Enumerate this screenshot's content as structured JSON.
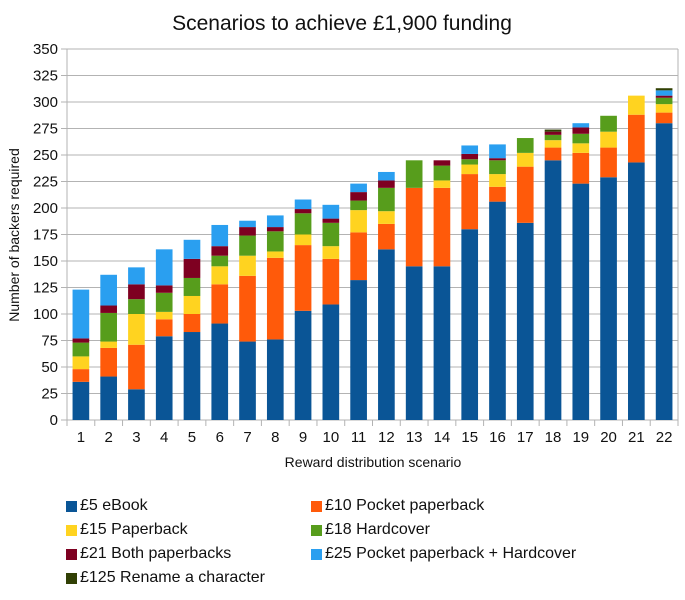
{
  "chart_data": {
    "type": "bar",
    "stacked": true,
    "title": "Scenarios to achieve £1,900 funding",
    "xlabel": "Reward distribution scenario",
    "ylabel": "Number of backers required",
    "ylim": [
      0,
      350
    ],
    "yticks": [
      0,
      25,
      50,
      75,
      100,
      125,
      150,
      175,
      200,
      225,
      250,
      275,
      300,
      325,
      350
    ],
    "grid": true,
    "legend_position": "bottom",
    "categories": [
      "1",
      "2",
      "3",
      "4",
      "5",
      "6",
      "7",
      "8",
      "9",
      "10",
      "11",
      "12",
      "13",
      "14",
      "15",
      "16",
      "17",
      "18",
      "19",
      "20",
      "21",
      "22"
    ],
    "series": [
      {
        "name": "£5 eBook",
        "color": "#0a5596",
        "values": [
          36,
          41,
          29,
          79,
          83,
          91,
          74,
          76,
          103,
          109,
          132,
          161,
          145,
          145,
          180,
          206,
          186,
          245,
          223,
          229,
          243,
          280
        ]
      },
      {
        "name": "£10 Pocket paperback",
        "color": "#ff5a0a",
        "values": [
          12,
          27,
          42,
          16,
          17,
          37,
          62,
          77,
          62,
          43,
          45,
          24,
          74,
          74,
          52,
          14,
          53,
          12,
          29,
          28,
          45,
          10
        ]
      },
      {
        "name": "£15 Paperback",
        "color": "#ffd320",
        "values": [
          12,
          6,
          29,
          7,
          17,
          17,
          19,
          6,
          10,
          12,
          21,
          12,
          0,
          7,
          9,
          12,
          13,
          7,
          9,
          15,
          18,
          8
        ]
      },
      {
        "name": "£18 Hardcover",
        "color": "#579d1c",
        "values": [
          13,
          27,
          14,
          18,
          17,
          10,
          19,
          19,
          20,
          22,
          9,
          22,
          26,
          14,
          5,
          13,
          14,
          5,
          9,
          15,
          0,
          6
        ]
      },
      {
        "name": "£21 Both paperbacks",
        "color": "#7e0021",
        "values": [
          4,
          7,
          14,
          7,
          18,
          9,
          8,
          4,
          4,
          4,
          8,
          7,
          0,
          5,
          5,
          2,
          0,
          3,
          6,
          0,
          0,
          2
        ]
      },
      {
        "name": "£25 Pocket paperback + Hardcover",
        "color": "#2a9ff0",
        "values": [
          46,
          29,
          16,
          34,
          18,
          20,
          6,
          11,
          9,
          13,
          8,
          8,
          0,
          0,
          8,
          13,
          0,
          0,
          4,
          0,
          0,
          5
        ]
      },
      {
        "name": "£125 Rename a character",
        "color": "#314004",
        "values": [
          0,
          0,
          0,
          0,
          0,
          0,
          0,
          0,
          0,
          0,
          0,
          0,
          0,
          0,
          0,
          0,
          0,
          2,
          0,
          0,
          0,
          2
        ]
      }
    ]
  }
}
